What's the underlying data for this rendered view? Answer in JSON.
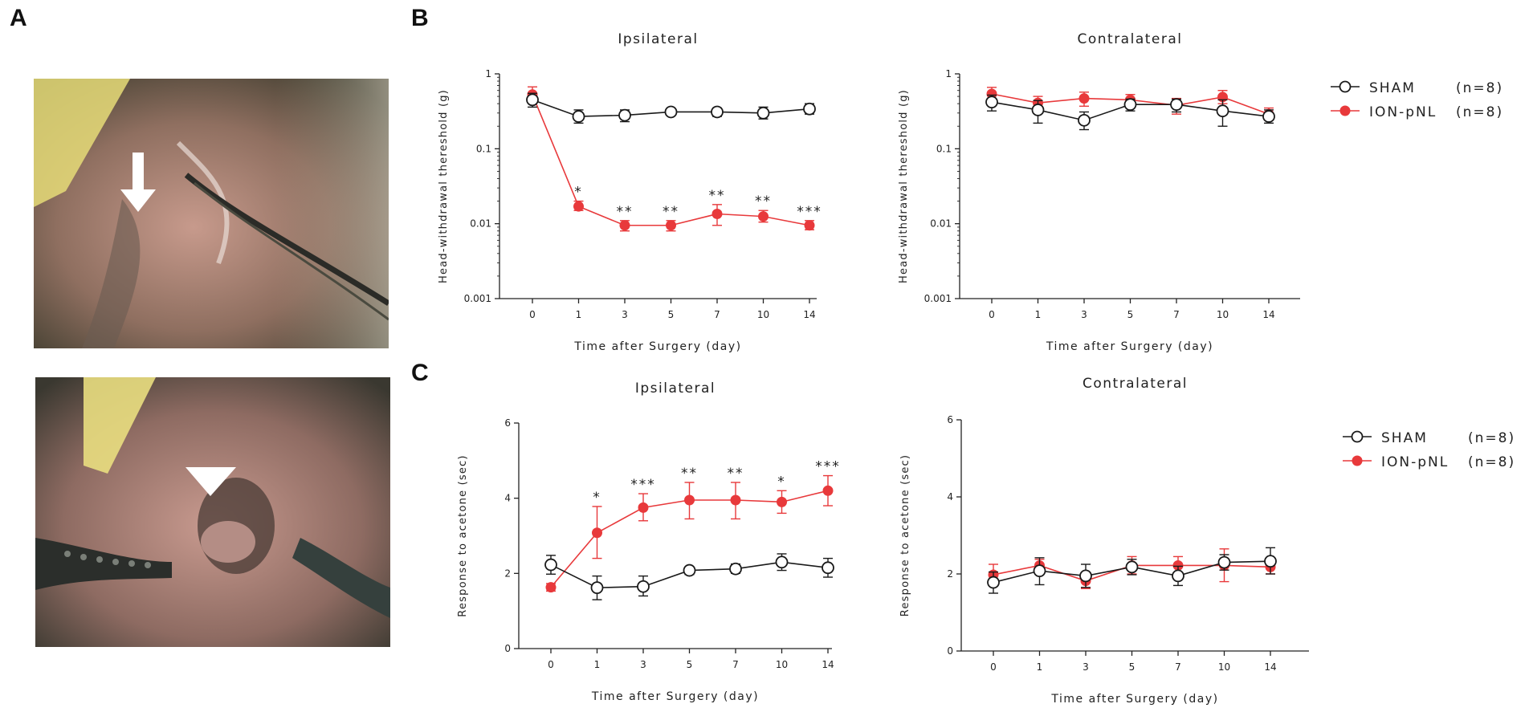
{
  "panels": {
    "A": "A",
    "B": "B",
    "C": "C"
  },
  "colors": {
    "sham": "#1a1a1a",
    "pnl": "#e8393b"
  },
  "legend_B": [
    {
      "label": "SHAM",
      "n": "(n=8)",
      "marker": "open-circle"
    },
    {
      "label": "ION-pNL",
      "n": "(n=8)",
      "marker": "filled-circle"
    }
  ],
  "legend_C": [
    {
      "label": "SHAM",
      "n": "(n=8)",
      "marker": "open-circle"
    },
    {
      "label": "ION-pNL",
      "n": "(n=8)",
      "marker": "filled-circle"
    }
  ],
  "photos": [
    {
      "marker": "arrow"
    },
    {
      "marker": "arrowhead"
    }
  ],
  "chart_data": [
    {
      "id": "B-ipsi",
      "type": "line",
      "scale": "log",
      "title": "Ipsilateral",
      "xlabel": "Time after Surgery (day)",
      "ylabel": "Head-withdrawal thereshold (g)",
      "categories": [
        "0",
        "1",
        "3",
        "5",
        "7",
        "10",
        "14"
      ],
      "ylim": [
        0.001,
        1
      ],
      "yticks": [
        1,
        0.1,
        0.01,
        0.001
      ],
      "yticklabels": [
        "1",
        "0.1",
        "0.01",
        "0.001"
      ],
      "series": [
        {
          "name": "SHAM",
          "values": [
            0.45,
            0.27,
            0.28,
            0.31,
            0.31,
            0.3,
            0.34
          ],
          "err_low": [
            0.36,
            0.22,
            0.23,
            0.29,
            0.27,
            0.25,
            0.29
          ],
          "err_high": [
            0.55,
            0.33,
            0.33,
            0.33,
            0.35,
            0.36,
            0.4
          ]
        },
        {
          "name": "ION-pNL",
          "values": [
            0.53,
            0.017,
            0.0095,
            0.0095,
            0.0135,
            0.0125,
            0.0095
          ],
          "err_low": [
            0.42,
            0.015,
            0.008,
            0.008,
            0.0095,
            0.0105,
            0.0083
          ],
          "err_high": [
            0.67,
            0.02,
            0.011,
            0.011,
            0.018,
            0.015,
            0.011
          ]
        }
      ],
      "annotations": [
        "",
        "*",
        "**",
        "**",
        "**",
        "**",
        "***"
      ]
    },
    {
      "id": "B-contra",
      "type": "line",
      "scale": "log",
      "title": "Contralateral",
      "xlabel": "Time after Surgery (day)",
      "ylabel": "Head-withdrawal thereshold (g)",
      "categories": [
        "0",
        "1",
        "3",
        "5",
        "7",
        "10",
        "14"
      ],
      "ylim": [
        0.001,
        1
      ],
      "yticks": [
        1,
        0.1,
        0.01,
        0.001
      ],
      "yticklabels": [
        "1",
        "0.1",
        "0.01",
        "0.001"
      ],
      "series": [
        {
          "name": "SHAM",
          "values": [
            0.42,
            0.33,
            0.24,
            0.39,
            0.39,
            0.32,
            0.27
          ],
          "err_low": [
            0.32,
            0.22,
            0.18,
            0.32,
            0.31,
            0.2,
            0.22
          ],
          "err_high": [
            0.52,
            0.44,
            0.31,
            0.46,
            0.46,
            0.45,
            0.33
          ]
        },
        {
          "name": "ION-pNL",
          "values": [
            0.54,
            0.41,
            0.47,
            0.45,
            0.38,
            0.49,
            0.29
          ],
          "err_low": [
            0.43,
            0.33,
            0.37,
            0.37,
            0.29,
            0.4,
            0.24
          ],
          "err_high": [
            0.66,
            0.5,
            0.57,
            0.53,
            0.47,
            0.6,
            0.35
          ]
        }
      ],
      "annotations": [
        "",
        "",
        "",
        "",
        "",
        "",
        ""
      ]
    },
    {
      "id": "C-ipsi",
      "type": "line",
      "scale": "linear",
      "title": "Ipsilateral",
      "xlabel": "Time after Surgery (day)",
      "ylabel": "Response to acetone (sec)",
      "categories": [
        "0",
        "1",
        "3",
        "5",
        "7",
        "10",
        "14"
      ],
      "ylim": [
        0,
        6
      ],
      "yticks": [
        0,
        2,
        4,
        6
      ],
      "yticklabels": [
        "0",
        "2",
        "4",
        "6"
      ],
      "series": [
        {
          "name": "SHAM",
          "values": [
            2.23,
            1.62,
            1.65,
            2.08,
            2.12,
            2.3,
            2.15
          ],
          "err_low": [
            1.98,
            1.3,
            1.4,
            1.97,
            2.0,
            2.08,
            1.9
          ],
          "err_high": [
            2.48,
            1.93,
            1.93,
            2.18,
            2.25,
            2.52,
            2.4
          ]
        },
        {
          "name": "ION-pNL",
          "values": [
            1.63,
            3.08,
            3.75,
            3.95,
            3.95,
            3.9,
            4.2
          ],
          "err_low": [
            1.53,
            2.4,
            3.4,
            3.45,
            3.45,
            3.6,
            3.8
          ],
          "err_high": [
            1.73,
            3.78,
            4.12,
            4.42,
            4.42,
            4.2,
            4.6
          ]
        }
      ],
      "annotations": [
        "",
        "*",
        "***",
        "**",
        "**",
        "*",
        "***"
      ]
    },
    {
      "id": "C-contra",
      "type": "line",
      "scale": "linear",
      "title": "Contralateral",
      "xlabel": "Time after Surgery (day)",
      "ylabel": "Response to acetone (sec)",
      "categories": [
        "0",
        "1",
        "3",
        "5",
        "7",
        "10",
        "14"
      ],
      "ylim": [
        0,
        6
      ],
      "yticks": [
        0,
        2,
        4,
        6
      ],
      "yticklabels": [
        "0",
        "2",
        "4",
        "6"
      ],
      "series": [
        {
          "name": "SHAM",
          "values": [
            1.78,
            2.08,
            1.95,
            2.18,
            1.95,
            2.3,
            2.33
          ],
          "err_low": [
            1.5,
            1.72,
            1.65,
            1.98,
            1.7,
            2.1,
            2.0
          ],
          "err_high": [
            2.05,
            2.42,
            2.25,
            2.38,
            2.2,
            2.5,
            2.68
          ]
        },
        {
          "name": "ION-pNL",
          "values": [
            1.98,
            2.22,
            1.82,
            2.22,
            2.22,
            2.22,
            2.18
          ],
          "err_low": [
            1.7,
            2.05,
            1.62,
            2.0,
            1.98,
            1.8,
            2.0
          ],
          "err_high": [
            2.25,
            2.38,
            2.02,
            2.45,
            2.45,
            2.65,
            2.36
          ]
        }
      ],
      "annotations": [
        "",
        "",
        "",
        "",
        "",
        "",
        ""
      ]
    }
  ]
}
